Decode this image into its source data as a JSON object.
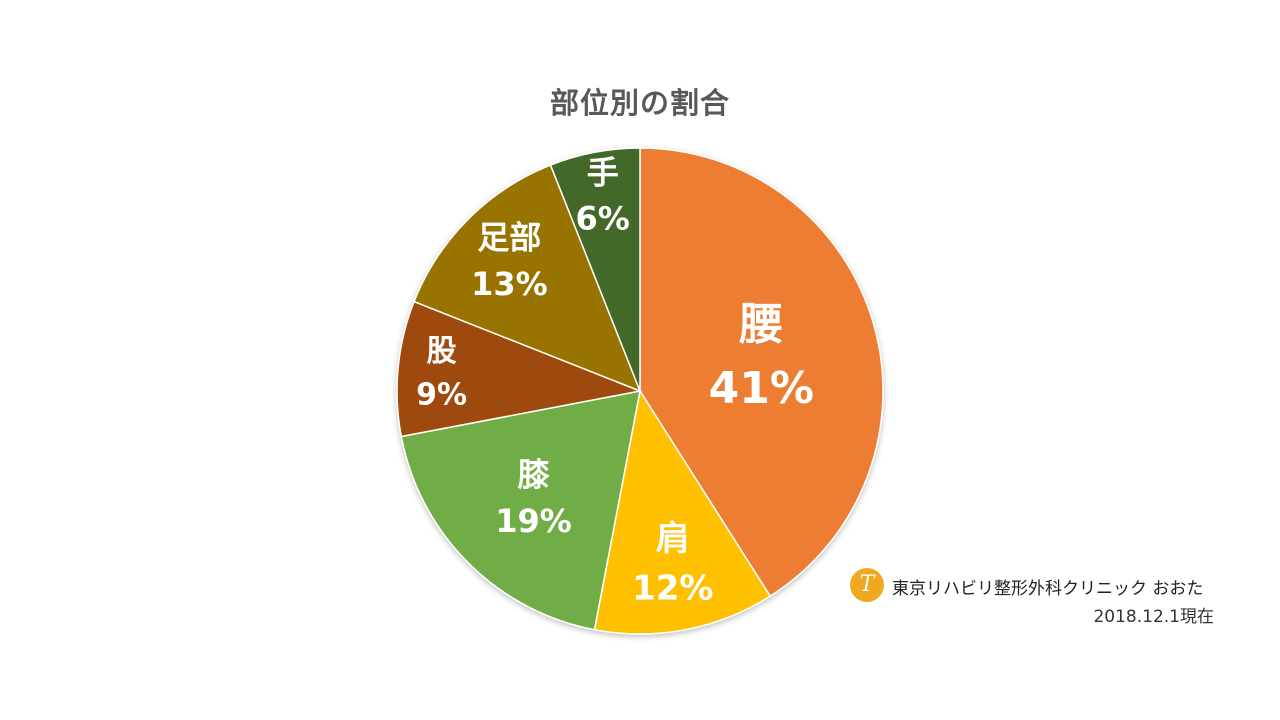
{
  "chart_data": {
    "type": "pie",
    "title": "部位別の割合",
    "categories": [
      "腰",
      "肩",
      "膝",
      "股",
      "足部",
      "手"
    ],
    "values": [
      41,
      12,
      19,
      9,
      13,
      6
    ],
    "percent_labels": [
      "41%",
      "12%",
      "19%",
      "9%",
      "13%",
      "6%"
    ],
    "colors": [
      "#ED7D31",
      "#FFC000",
      "#70AD47",
      "#9E480E",
      "#997300",
      "#43682B"
    ],
    "start": "12 o'clock, clockwise",
    "legend": "none (labels inside slices)"
  },
  "footer": {
    "logo_letter": "T",
    "clinic_name": "東京リハビリ整形外科クリニック おおた",
    "as_of": "2018.12.1現在"
  }
}
